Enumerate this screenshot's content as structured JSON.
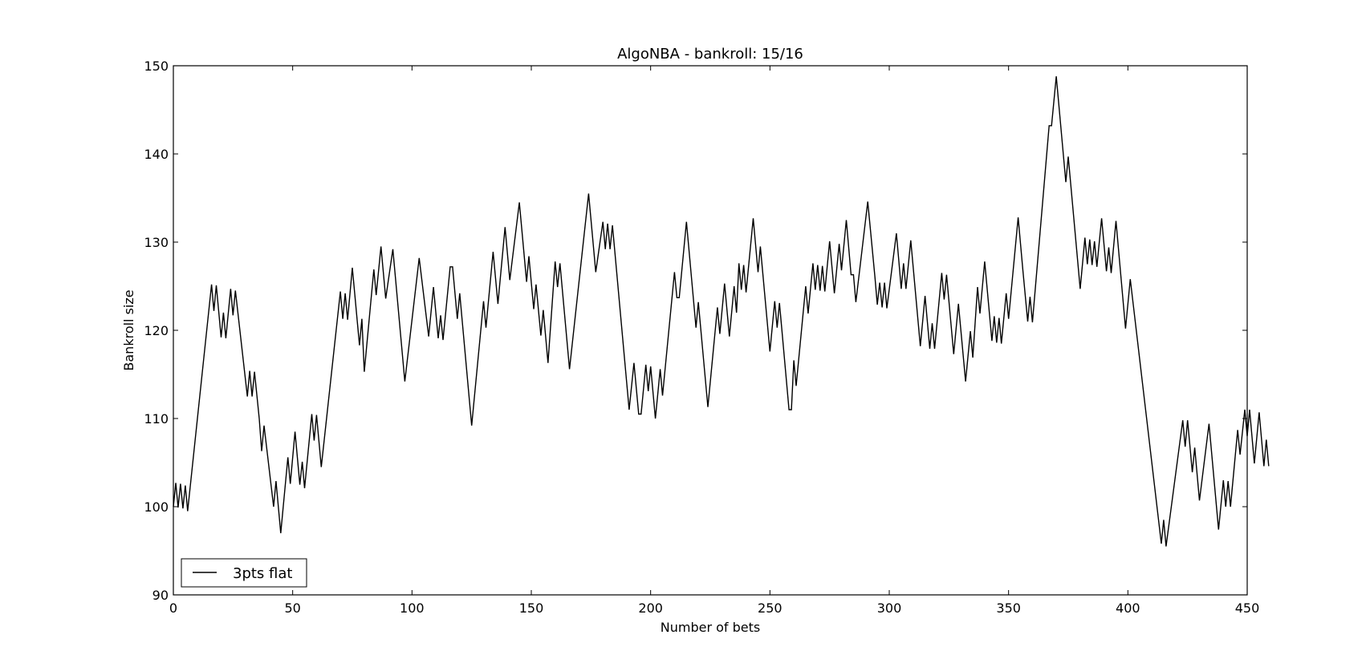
{
  "chart_data": {
    "type": "line",
    "title": "AlgoNBA - bankroll: 15/16",
    "xlabel": "Number of bets",
    "ylabel": "Bankroll size",
    "xlim": [
      0,
      450
    ],
    "ylim": [
      90,
      150
    ],
    "xticks": [
      0,
      50,
      100,
      150,
      200,
      250,
      300,
      350,
      400,
      450
    ],
    "yticks": [
      90,
      100,
      110,
      120,
      130,
      140,
      150
    ],
    "grid": false,
    "legend": {
      "position": "lower-left",
      "entries": [
        "3pts flat"
      ]
    },
    "series": [
      {
        "name": "3pts flat",
        "color": "#000000",
        "points": [
          [
            0,
            100
          ],
          [
            1,
            102.7
          ],
          [
            2,
            99.9
          ],
          [
            3,
            102.6
          ],
          [
            4,
            99.8
          ],
          [
            5,
            102.4
          ],
          [
            6,
            99.5
          ],
          [
            16,
            125.2
          ],
          [
            17,
            122.2
          ],
          [
            18,
            125.1
          ],
          [
            20,
            119.2
          ],
          [
            21,
            122.0
          ],
          [
            22,
            119.1
          ],
          [
            24,
            124.7
          ],
          [
            25,
            121.7
          ],
          [
            26,
            124.5
          ],
          [
            31,
            112.5
          ],
          [
            32,
            115.4
          ],
          [
            33,
            112.5
          ],
          [
            34,
            115.3
          ],
          [
            36,
            110.0
          ],
          [
            37,
            106.3
          ],
          [
            38,
            109.2
          ],
          [
            42,
            100.0
          ],
          [
            43,
            102.9
          ],
          [
            45,
            97.0
          ],
          [
            48,
            105.6
          ],
          [
            49,
            102.6
          ],
          [
            51,
            108.5
          ],
          [
            53,
            102.5
          ],
          [
            54,
            105.1
          ],
          [
            55,
            102.1
          ],
          [
            58,
            110.5
          ],
          [
            59,
            107.5
          ],
          [
            60,
            110.4
          ],
          [
            62,
            104.5
          ],
          [
            70,
            124.4
          ],
          [
            71,
            121.3
          ],
          [
            72,
            124.2
          ],
          [
            73,
            121.2
          ],
          [
            75,
            127.1
          ],
          [
            78,
            118.3
          ],
          [
            79,
            121.3
          ],
          [
            80,
            115.3
          ],
          [
            84,
            126.9
          ],
          [
            85,
            124.0
          ],
          [
            87,
            129.5
          ],
          [
            89,
            123.6
          ],
          [
            92,
            129.2
          ],
          [
            97,
            114.2
          ],
          [
            103,
            128.2
          ],
          [
            107,
            119.3
          ],
          [
            109,
            124.9
          ],
          [
            111,
            119.1
          ],
          [
            112,
            121.7
          ],
          [
            113,
            118.9
          ],
          [
            116,
            127.2
          ],
          [
            117,
            127.2
          ],
          [
            119,
            121.3
          ],
          [
            120,
            124.2
          ],
          [
            125,
            109.2
          ],
          [
            130,
            123.3
          ],
          [
            131,
            120.3
          ],
          [
            134,
            128.9
          ],
          [
            136,
            123.0
          ],
          [
            139,
            131.7
          ],
          [
            141,
            125.7
          ],
          [
            145,
            134.5
          ],
          [
            148,
            125.5
          ],
          [
            149,
            128.4
          ],
          [
            151,
            122.4
          ],
          [
            152,
            125.2
          ],
          [
            154,
            119.4
          ],
          [
            155,
            122.3
          ],
          [
            157,
            116.3
          ],
          [
            160,
            127.8
          ],
          [
            161,
            124.9
          ],
          [
            162,
            127.6
          ],
          [
            166,
            115.6
          ],
          [
            174,
            135.5
          ],
          [
            177,
            126.6
          ],
          [
            180,
            132.3
          ],
          [
            181,
            129.2
          ],
          [
            182,
            132.1
          ],
          [
            183,
            129.2
          ],
          [
            184,
            131.9
          ],
          [
            191,
            111.0
          ],
          [
            193,
            116.3
          ],
          [
            195,
            110.5
          ],
          [
            196,
            110.5
          ],
          [
            198,
            116.1
          ],
          [
            199,
            113.1
          ],
          [
            200,
            115.9
          ],
          [
            202,
            110.0
          ],
          [
            204,
            115.6
          ],
          [
            205,
            112.6
          ],
          [
            210,
            126.6
          ],
          [
            211,
            123.7
          ],
          [
            212,
            123.7
          ],
          [
            215,
            132.3
          ],
          [
            219,
            120.3
          ],
          [
            220,
            123.2
          ],
          [
            224,
            111.3
          ],
          [
            228,
            122.6
          ],
          [
            229,
            119.6
          ],
          [
            231,
            125.3
          ],
          [
            233,
            119.3
          ],
          [
            235,
            125.0
          ],
          [
            236,
            122.0
          ],
          [
            237,
            127.6
          ],
          [
            238,
            124.6
          ],
          [
            239,
            127.4
          ],
          [
            240,
            124.3
          ],
          [
            243,
            132.7
          ],
          [
            245,
            126.6
          ],
          [
            246,
            129.5
          ],
          [
            250,
            117.6
          ],
          [
            252,
            123.3
          ],
          [
            253,
            120.3
          ],
          [
            254,
            123.1
          ],
          [
            258,
            111.0
          ],
          [
            259,
            111.0
          ],
          [
            260,
            116.6
          ],
          [
            261,
            113.7
          ],
          [
            265,
            125.0
          ],
          [
            266,
            121.9
          ],
          [
            268,
            127.6
          ],
          [
            269,
            124.6
          ],
          [
            270,
            127.4
          ],
          [
            271,
            124.5
          ],
          [
            272,
            127.3
          ],
          [
            273,
            124.4
          ],
          [
            275,
            130.1
          ],
          [
            277,
            124.2
          ],
          [
            279,
            129.8
          ],
          [
            280,
            126.8
          ],
          [
            282,
            132.5
          ],
          [
            284,
            126.3
          ],
          [
            285,
            126.3
          ],
          [
            286,
            123.2
          ],
          [
            291,
            134.6
          ],
          [
            294,
            126.0
          ],
          [
            295,
            122.9
          ],
          [
            296,
            125.4
          ],
          [
            297,
            122.6
          ],
          [
            298,
            125.4
          ],
          [
            299,
            122.5
          ],
          [
            303,
            131.0
          ],
          [
            304,
            127.9
          ],
          [
            305,
            124.7
          ],
          [
            306,
            127.6
          ],
          [
            307,
            124.7
          ],
          [
            309,
            130.2
          ],
          [
            313,
            118.2
          ],
          [
            315,
            123.9
          ],
          [
            317,
            117.9
          ],
          [
            318,
            120.8
          ],
          [
            319,
            117.9
          ],
          [
            322,
            126.5
          ],
          [
            323,
            123.5
          ],
          [
            324,
            126.3
          ],
          [
            327,
            117.3
          ],
          [
            329,
            123.0
          ],
          [
            332,
            114.2
          ],
          [
            334,
            119.9
          ],
          [
            335,
            116.9
          ],
          [
            337,
            124.9
          ],
          [
            338,
            121.9
          ],
          [
            340,
            127.8
          ],
          [
            343,
            118.8
          ],
          [
            344,
            121.6
          ],
          [
            345,
            118.6
          ],
          [
            346,
            121.4
          ],
          [
            347,
            118.5
          ],
          [
            349,
            124.2
          ],
          [
            350,
            121.3
          ],
          [
            354,
            132.8
          ],
          [
            356,
            126.8
          ],
          [
            358,
            121.0
          ],
          [
            359,
            123.8
          ],
          [
            360,
            120.9
          ],
          [
            367,
            143.2
          ],
          [
            368,
            143.2
          ],
          [
            370,
            148.8
          ],
          [
            374,
            136.8
          ],
          [
            375,
            139.7
          ],
          [
            380,
            124.7
          ],
          [
            382,
            130.5
          ],
          [
            383,
            127.5
          ],
          [
            384,
            130.3
          ],
          [
            385,
            127.4
          ],
          [
            386,
            130.1
          ],
          [
            387,
            127.2
          ],
          [
            389,
            132.7
          ],
          [
            391,
            126.7
          ],
          [
            392,
            129.4
          ],
          [
            393,
            126.5
          ],
          [
            395,
            132.4
          ],
          [
            399,
            120.2
          ],
          [
            401,
            125.8
          ],
          [
            414,
            95.8
          ],
          [
            415,
            98.5
          ],
          [
            416,
            95.5
          ],
          [
            423,
            109.8
          ],
          [
            424,
            106.8
          ],
          [
            425,
            109.8
          ],
          [
            427,
            103.9
          ],
          [
            428,
            106.7
          ],
          [
            430,
            100.7
          ],
          [
            434,
            109.4
          ],
          [
            438,
            97.4
          ],
          [
            440,
            103.0
          ],
          [
            441,
            100.0
          ],
          [
            442,
            102.9
          ],
          [
            443,
            100.0
          ],
          [
            446,
            108.7
          ],
          [
            447,
            105.9
          ],
          [
            449,
            111.0
          ],
          [
            450,
            108.0
          ],
          [
            451,
            111.0
          ],
          [
            453,
            104.9
          ],
          [
            455,
            110.7
          ],
          [
            457,
            104.6
          ],
          [
            458,
            107.6
          ],
          [
            459,
            104.6
          ]
        ]
      }
    ]
  }
}
